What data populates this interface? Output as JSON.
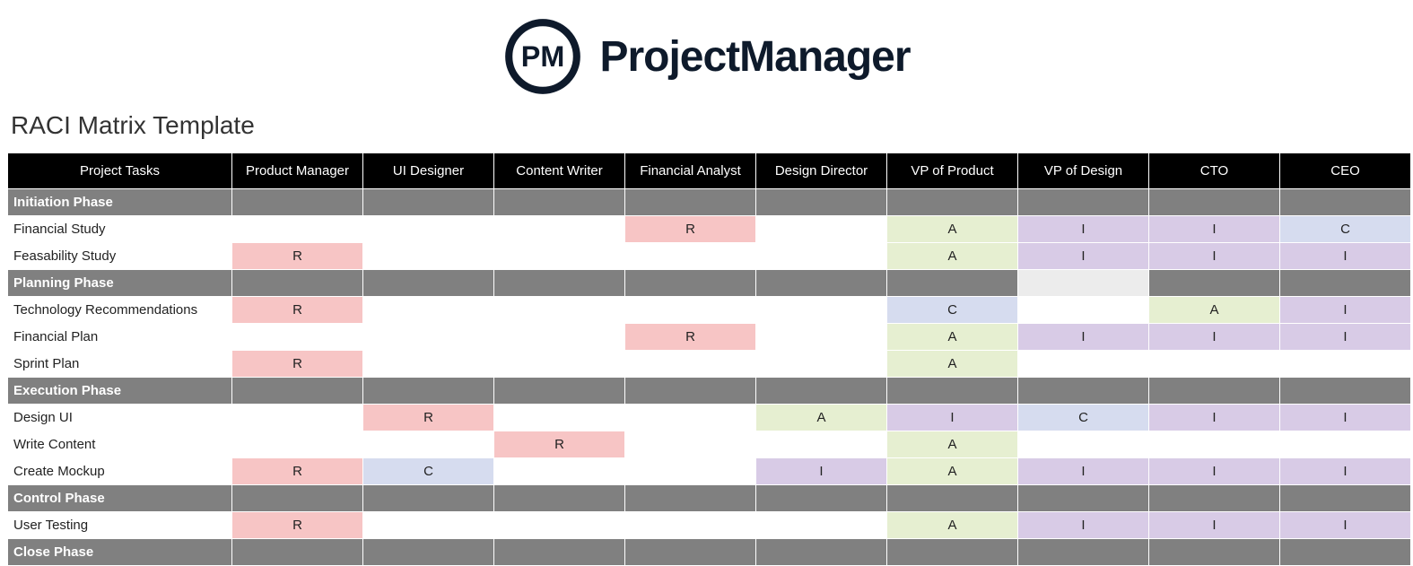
{
  "brand": {
    "logo_initials": "PM",
    "name": "ProjectManager",
    "logo_stroke": "#0e1a2b",
    "logo_text_color": "#0e1a2b"
  },
  "title": "RACI Matrix Template",
  "colors": {
    "header_bg": "#000000",
    "header_fg": "#ffffff",
    "phase_bg": "#808080",
    "phase_fg": "#ffffff",
    "plain_bg": "#ffffff",
    "R": "#f7c5c5",
    "A": "#e6efd1",
    "C": "#d6dcef",
    "I": "#d8cbe6",
    "lightgrey": "#ececec"
  },
  "columns": [
    "Project Tasks",
    "Product Manager",
    "UI Designer",
    "Content Writer",
    "Financial Analyst",
    "Design Director",
    "VP of Product",
    "VP of Design",
    "CTO",
    "CEO"
  ],
  "rows": [
    {
      "type": "phase",
      "label": "Initiation Phase",
      "cells": [
        "",
        "",
        "",
        "",
        "",
        "",
        "",
        "",
        ""
      ]
    },
    {
      "type": "task",
      "label": "Financial Study",
      "cells": [
        "",
        "",
        "",
        "R",
        "",
        "A",
        "I",
        "I",
        "C"
      ]
    },
    {
      "type": "task",
      "label": "Feasability Study",
      "cells": [
        "R",
        "",
        "",
        "",
        "",
        "A",
        "I",
        "I",
        "I"
      ]
    },
    {
      "type": "phase",
      "label": "Planning Phase",
      "cells": [
        "",
        "",
        "",
        "",
        "",
        "",
        "",
        "",
        ""
      ],
      "overrides": {
        "6": "lightgrey"
      }
    },
    {
      "type": "task",
      "label": "Technology Recommendations",
      "cells": [
        "R",
        "",
        "",
        "",
        "",
        "C",
        "",
        "A",
        "I"
      ]
    },
    {
      "type": "task",
      "label": "Financial Plan",
      "cells": [
        "",
        "",
        "",
        "R",
        "",
        "A",
        "I",
        "I",
        "I"
      ]
    },
    {
      "type": "task",
      "label": "Sprint Plan",
      "cells": [
        "R",
        "",
        "",
        "",
        "",
        "A",
        "",
        "",
        ""
      ]
    },
    {
      "type": "phase",
      "label": "Execution Phase",
      "cells": [
        "",
        "",
        "",
        "",
        "",
        "",
        "",
        "",
        ""
      ]
    },
    {
      "type": "task",
      "label": "Design UI",
      "cells": [
        "",
        "R",
        "",
        "",
        "A",
        "I",
        "C",
        "I",
        "I"
      ]
    },
    {
      "type": "task",
      "label": "Write Content",
      "cells": [
        "",
        "",
        "R",
        "",
        "",
        "A",
        "",
        "",
        ""
      ]
    },
    {
      "type": "task",
      "label": "Create Mockup",
      "cells": [
        "R",
        "C",
        "",
        "",
        "I",
        "A",
        "I",
        "I",
        "I"
      ]
    },
    {
      "type": "phase",
      "label": "Control Phase",
      "cells": [
        "",
        "",
        "",
        "",
        "",
        "",
        "",
        "",
        ""
      ]
    },
    {
      "type": "task",
      "label": "User Testing",
      "cells": [
        "R",
        "",
        "",
        "",
        "",
        "A",
        "I",
        "I",
        "I"
      ]
    },
    {
      "type": "phase",
      "label": "Close Phase",
      "cells": [
        "",
        "",
        "",
        "",
        "",
        "",
        "",
        "",
        ""
      ]
    }
  ]
}
